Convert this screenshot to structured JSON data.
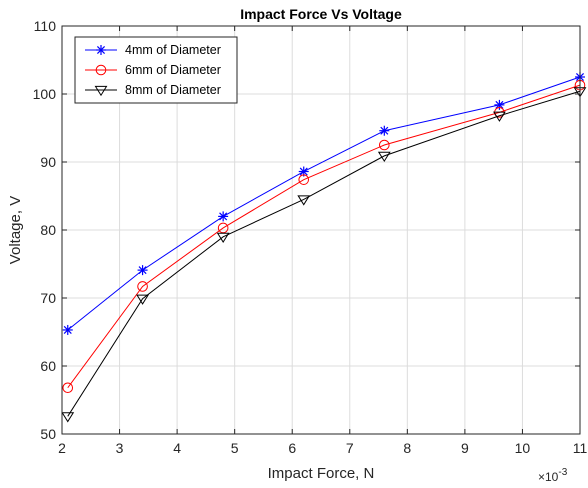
{
  "chart_data": {
    "type": "line",
    "title": "Impact Force Vs Voltage",
    "xlabel": "Impact Force, N",
    "ylabel": "Voltage, V",
    "x_exponent_base": "×10",
    "x_exponent_power": "-3",
    "xlim": [
      2,
      11
    ],
    "ylim": [
      50,
      110
    ],
    "xticks": [
      2,
      3,
      4,
      5,
      6,
      7,
      8,
      9,
      10,
      11
    ],
    "yticks": [
      50,
      60,
      70,
      80,
      90,
      100,
      110
    ],
    "grid": true,
    "legend_position": "top-left",
    "x": [
      2.1,
      3.4,
      4.8,
      6.2,
      7.6,
      9.6,
      11.0
    ],
    "series": [
      {
        "name": "4mm of Diameter",
        "color": "#0000ff",
        "marker": "asterisk",
        "values": [
          65.3,
          74.1,
          82.0,
          88.6,
          94.6,
          98.4,
          102.5
        ]
      },
      {
        "name": "6mm of Diameter",
        "color": "#ff0000",
        "marker": "circle",
        "values": [
          56.8,
          71.7,
          80.3,
          87.4,
          92.5,
          97.3,
          101.3
        ]
      },
      {
        "name": "8mm of Diameter",
        "color": "#000000",
        "marker": "triangle-down",
        "values": [
          52.6,
          69.9,
          79.0,
          84.5,
          90.9,
          96.8,
          100.4
        ]
      }
    ]
  }
}
